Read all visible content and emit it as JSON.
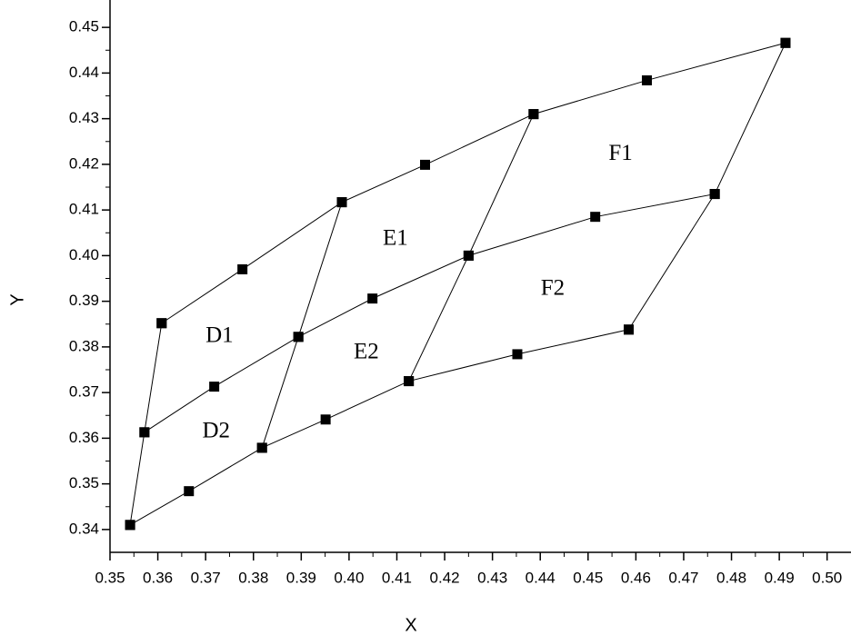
{
  "chart_data": {
    "type": "line",
    "xlabel": "X",
    "ylabel": "Y",
    "xlim": [
      0.35,
      0.505
    ],
    "ylim": [
      0.335,
      0.456
    ],
    "xticks": [
      {
        "value": 0.35,
        "label": "0.35"
      },
      {
        "value": 0.36,
        "label": "0.36"
      },
      {
        "value": 0.37,
        "label": "0.37"
      },
      {
        "value": 0.38,
        "label": "0.38"
      },
      {
        "value": 0.39,
        "label": "0.39"
      },
      {
        "value": 0.4,
        "label": "0.40"
      },
      {
        "value": 0.41,
        "label": "0.41"
      },
      {
        "value": 0.42,
        "label": "0.42"
      },
      {
        "value": 0.43,
        "label": "0.43"
      },
      {
        "value": 0.44,
        "label": "0.44"
      },
      {
        "value": 0.45,
        "label": "0.45"
      },
      {
        "value": 0.46,
        "label": "0.46"
      },
      {
        "value": 0.47,
        "label": "0.47"
      },
      {
        "value": 0.48,
        "label": "0.48"
      },
      {
        "value": 0.49,
        "label": "0.49"
      },
      {
        "value": 0.5,
        "label": "0.50"
      }
    ],
    "yticks": [
      {
        "value": 0.34,
        "label": "0.34"
      },
      {
        "value": 0.35,
        "label": "0.35"
      },
      {
        "value": 0.36,
        "label": "0.36"
      },
      {
        "value": 0.37,
        "label": "0.37"
      },
      {
        "value": 0.38,
        "label": "0.38"
      },
      {
        "value": 0.39,
        "label": "0.39"
      },
      {
        "value": 0.4,
        "label": "0.40"
      },
      {
        "value": 0.41,
        "label": "0.41"
      },
      {
        "value": 0.42,
        "label": "0.42"
      },
      {
        "value": 0.43,
        "label": "0.43"
      },
      {
        "value": 0.44,
        "label": "0.44"
      },
      {
        "value": 0.45,
        "label": "0.45"
      }
    ],
    "color": "#000000",
    "series": [
      {
        "x": [
          0.3608,
          0.3777,
          0.3985,
          0.4159,
          0.4386,
          0.4623,
          0.4913
        ],
        "values": [
          0.3852,
          0.397,
          0.4117,
          0.4199,
          0.431,
          0.4384,
          0.4466
        ]
      },
      {
        "x": [
          0.3572,
          0.3718,
          0.3894,
          0.4049,
          0.425,
          0.4515,
          0.4765
        ],
        "values": [
          0.3613,
          0.3713,
          0.3822,
          0.3906,
          0.4,
          0.4085,
          0.4135
        ]
      },
      {
        "x": [
          0.3542,
          0.3665,
          0.3818,
          0.3951,
          0.4125,
          0.4352,
          0.4585
        ],
        "values": [
          0.341,
          0.3484,
          0.3579,
          0.3641,
          0.3725,
          0.3784,
          0.3838
        ]
      },
      {
        "x": [
          0.3542,
          0.3572,
          0.3608
        ],
        "values": [
          0.341,
          0.3613,
          0.3852
        ]
      },
      {
        "x": [
          0.3818,
          0.3894,
          0.3985
        ],
        "values": [
          0.3579,
          0.3822,
          0.4117
        ]
      },
      {
        "x": [
          0.4125,
          0.425,
          0.4386
        ],
        "values": [
          0.3725,
          0.4,
          0.431
        ]
      },
      {
        "x": [
          0.4585,
          0.4765,
          0.4913
        ],
        "values": [
          0.3838,
          0.4135,
          0.4466
        ]
      }
    ],
    "annotations": [
      {
        "text": "D1",
        "x": 0.3729,
        "y": 0.3822
      },
      {
        "text": "D2",
        "x": 0.3722,
        "y": 0.3613
      },
      {
        "text": "E1",
        "x": 0.4097,
        "y": 0.4035
      },
      {
        "text": "E2",
        "x": 0.4036,
        "y": 0.3786
      },
      {
        "text": "F1",
        "x": 0.4568,
        "y": 0.4221
      },
      {
        "text": "F2",
        "x": 0.4426,
        "y": 0.3926
      }
    ]
  }
}
